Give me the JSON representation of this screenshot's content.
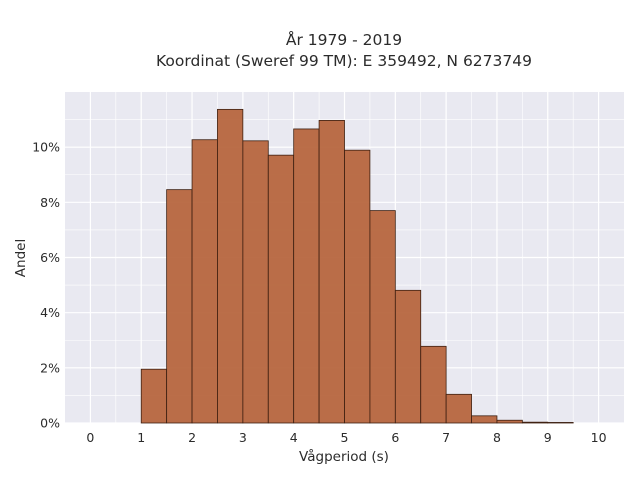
{
  "chart_data": {
    "type": "bar",
    "title_lines": [
      "År 1979 - 2019",
      "Koordinat (Sweref 99 TM): E 359492, N 6273749"
    ],
    "xlabel": "Vågperiod (s)",
    "ylabel": "Andel",
    "x_ticks": [
      "0",
      "1",
      "2",
      "3",
      "4",
      "5",
      "6",
      "7",
      "8",
      "9",
      "10"
    ],
    "y_ticks": [
      "0%",
      "2%",
      "4%",
      "6%",
      "8%",
      "10%"
    ],
    "xlim": [
      -0.5,
      10.5
    ],
    "ylim": [
      0,
      0.12
    ],
    "bin_width": 0.5,
    "bins": [
      {
        "start": 1.0,
        "value": 0.0195
      },
      {
        "start": 1.5,
        "value": 0.0846
      },
      {
        "start": 2.0,
        "value": 0.1027
      },
      {
        "start": 2.5,
        "value": 0.1137
      },
      {
        "start": 3.0,
        "value": 0.1023
      },
      {
        "start": 3.5,
        "value": 0.0971
      },
      {
        "start": 4.0,
        "value": 0.1066
      },
      {
        "start": 4.5,
        "value": 0.1097
      },
      {
        "start": 5.0,
        "value": 0.0989
      },
      {
        "start": 5.5,
        "value": 0.077
      },
      {
        "start": 6.0,
        "value": 0.0481
      },
      {
        "start": 6.5,
        "value": 0.0278
      },
      {
        "start": 7.0,
        "value": 0.0104
      },
      {
        "start": 7.5,
        "value": 0.0026
      },
      {
        "start": 8.0,
        "value": 0.001
      },
      {
        "start": 8.5,
        "value": 0.0003
      },
      {
        "start": 9.0,
        "value": 0.0002
      }
    ],
    "bar_color": "#b5623a",
    "bar_edge_color": "#3d1f10",
    "plot_background": "#e9e9f1",
    "grid": true,
    "grid_color": "#ffffff"
  }
}
